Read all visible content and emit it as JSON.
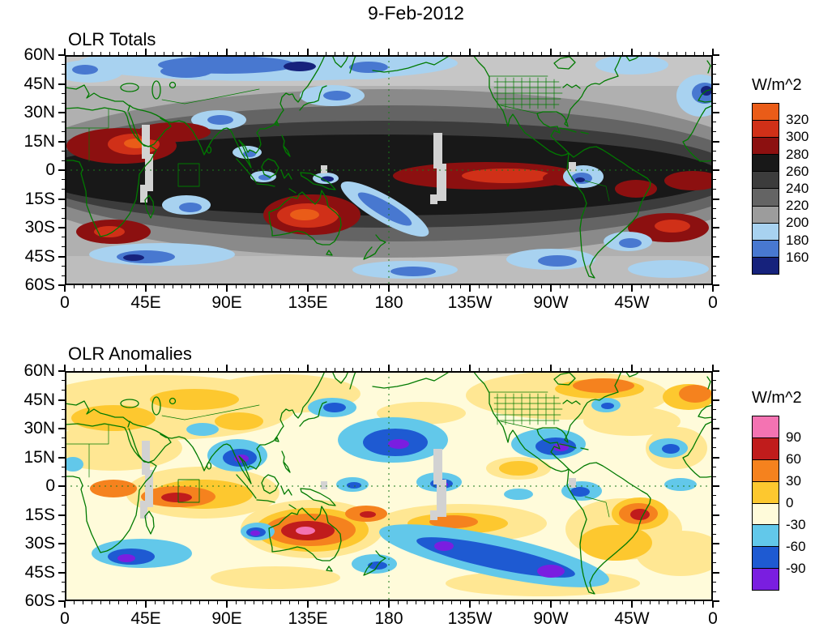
{
  "title": "9-Feb-2012",
  "panels": [
    {
      "heading": "OLR Totals",
      "y_tick_labels": [
        "60N",
        "45N",
        "30N",
        "15N",
        "0",
        "15S",
        "30S",
        "45S",
        "60S"
      ],
      "x_tick_labels": [
        "0",
        "45E",
        "90E",
        "135E",
        "180",
        "135W",
        "90W",
        "45W",
        "0"
      ],
      "colorbar": {
        "unit_label": "W/m^2",
        "boundary_labels": [
          "320",
          "300",
          "280",
          "260",
          "240",
          "220",
          "200",
          "180",
          "160"
        ],
        "segment_colors_top_to_bottom": [
          "#ea5c18",
          "#d03018",
          "#8c1010",
          "#181818",
          "#3c3c3c",
          "#646464",
          "#9c9c9c",
          "#a8d2f0",
          "#4878d0",
          "#16227c"
        ]
      }
    },
    {
      "heading": "OLR Anomalies",
      "y_tick_labels": [
        "60N",
        "45N",
        "30N",
        "15N",
        "0",
        "15S",
        "30S",
        "45S",
        "60S"
      ],
      "x_tick_labels": [
        "0",
        "45E",
        "90E",
        "135E",
        "180",
        "135W",
        "90W",
        "45W",
        "0"
      ],
      "colorbar": {
        "unit_label": "W/m^2",
        "boundary_labels": [
          "90",
          "60",
          "30",
          "0",
          "-30",
          "-60",
          "-90"
        ],
        "segment_colors_top_to_bottom": [
          "#f473b2",
          "#c01c1c",
          "#f5821e",
          "#fdc82f",
          "#fffbda",
          "#62c8ea",
          "#1e5ad2",
          "#7a1ee0"
        ]
      }
    }
  ],
  "chart_data": [
    {
      "type": "heatmap",
      "title": "OLR Totals",
      "date": "9-Feb-2012",
      "units": "W/m^2",
      "projection": "equirectangular world map, longitude 0 eastward through 180 back to 0, latitude 60N to 60S",
      "x_axis": {
        "tick_labels": [
          "0",
          "45E",
          "90E",
          "135E",
          "180",
          "135W",
          "90W",
          "45W",
          "0"
        ],
        "range_deg_east": [
          0,
          360
        ]
      },
      "y_axis": {
        "tick_labels": [
          "60N",
          "45N",
          "30N",
          "15N",
          "0",
          "15S",
          "30S",
          "45S",
          "60S"
        ],
        "range_deg_north": [
          60,
          -60
        ]
      },
      "contour_levels_w_m2": [
        160,
        180,
        200,
        220,
        240,
        260,
        280,
        300,
        320
      ],
      "palette_low_to_high": [
        "#16227c",
        "#4878d0",
        "#a8d2f0",
        "#9c9c9c",
        "#646464",
        "#3c3c3c",
        "#181818",
        "#8c1010",
        "#d03018",
        "#ea5c18"
      ],
      "legend_position": "right",
      "grid": false,
      "reference_lines": [
        "dashed meridian at 180",
        "dashed equator"
      ],
      "overlay": "green coastlines, national borders and US state boundaries",
      "visible_features": [
        "High OLR above 300 W/m^2 (red/orange) over the Sahel and East Africa near 15N, Arabia, central Australia, the equatorial central/east Pacific, southern Africa and the subtropical South Atlantic",
        "Low OLR below 200 W/m^2 (blues) over the Tibetan Plateau, Maritime Continent, tropical south Indian Ocean, South Pacific convergence zone, northwest South America, North Pacific, North Atlantic and Southern Ocean storm tracks",
        "Mid-range OLR (200-280 W/m^2, gray shades) over most other regions",
        "Light-gray blocky strips of missing data near 43E and 155W and small patches near 145E and 90W"
      ]
    },
    {
      "type": "heatmap",
      "title": "OLR Anomalies",
      "date": "9-Feb-2012",
      "units": "W/m^2",
      "projection": "equirectangular world map, longitude 0 eastward through 180 back to 0, latitude 60N to 60S",
      "x_axis": {
        "tick_labels": [
          "0",
          "45E",
          "90E",
          "135E",
          "180",
          "135W",
          "90W",
          "45W",
          "0"
        ],
        "range_deg_east": [
          0,
          360
        ]
      },
      "y_axis": {
        "tick_labels": [
          "60N",
          "45N",
          "30N",
          "15N",
          "0",
          "15S",
          "30S",
          "45S",
          "60S"
        ],
        "range_deg_north": [
          60,
          -60
        ]
      },
      "contour_levels_w_m2": [
        -90,
        -60,
        -30,
        0,
        30,
        60,
        90
      ],
      "palette_low_to_high": [
        "#7a1ee0",
        "#1e5ad2",
        "#62c8ea",
        "#fffbda",
        "#fdc82f",
        "#f5821e",
        "#c01c1c",
        "#f473b2"
      ],
      "legend_position": "right",
      "grid": false,
      "reference_lines": [
        "dashed meridian at 180",
        "dashed equator"
      ],
      "overlay": "green coastlines, national borders and US state boundaries",
      "visible_features": [
        "Strong positive anomalies (+30 to above +90, orange/red with a small pink core) centered on Australia, plus the western tropical Indian Ocean, equatorial Africa, parts of the central South Pacific and southeast Brazil",
        "Strong negative anomalies (-30 to below -90, cyan/blue/purple) over the Bay of Bengal and Indochina, central North Pacific, equatorial Pacific near the dateline, a broad South Pacific band, the southwest Indian Ocean, west of Australia, and the Caribbean/Gulf of Mexico",
        "Weak anomalies (pale yellow/cream, about -30 to +30) over most remaining areas",
        "Light-gray blocky strips of missing data near 43E and 155W"
      ]
    }
  ]
}
